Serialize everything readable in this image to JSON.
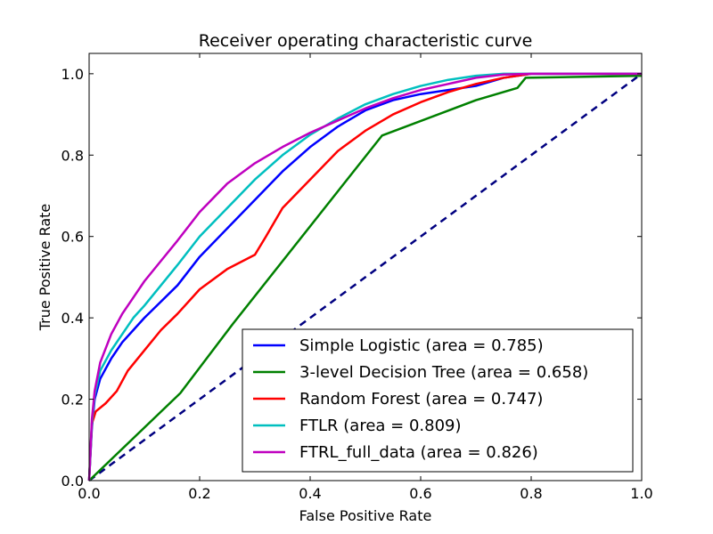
{
  "chart_data": {
    "type": "line",
    "title": "Receiver operating characteristic curve",
    "xlabel": "False Positive Rate",
    "ylabel": "True Positive Rate",
    "xlim": [
      0.0,
      1.0
    ],
    "ylim": [
      0.0,
      1.05
    ],
    "xticks": [
      "0.0",
      "0.2",
      "0.4",
      "0.6",
      "0.8",
      "1.0"
    ],
    "yticks": [
      "0.0",
      "0.2",
      "0.4",
      "0.6",
      "0.8",
      "1.0"
    ],
    "grid": false,
    "legend_position": "lower-right",
    "series": [
      {
        "name": "Simple Logistic (area = 0.785)",
        "color": "#0000ff",
        "x": [
          0.0,
          0.005,
          0.01,
          0.02,
          0.04,
          0.06,
          0.08,
          0.1,
          0.13,
          0.16,
          0.2,
          0.25,
          0.3,
          0.35,
          0.4,
          0.45,
          0.5,
          0.55,
          0.6,
          0.65,
          0.7,
          0.75,
          0.8,
          1.0
        ],
        "y": [
          0.0,
          0.13,
          0.2,
          0.25,
          0.3,
          0.34,
          0.37,
          0.4,
          0.44,
          0.48,
          0.55,
          0.62,
          0.69,
          0.76,
          0.82,
          0.87,
          0.91,
          0.935,
          0.95,
          0.96,
          0.97,
          0.99,
          1.0,
          1.0
        ]
      },
      {
        "name": "3-level Decision Tree (area = 0.658)",
        "color": "#008000",
        "x": [
          0.0,
          0.165,
          0.26,
          0.53,
          0.7,
          0.775,
          0.79,
          1.0
        ],
        "y": [
          0.0,
          0.215,
          0.385,
          0.848,
          0.935,
          0.965,
          0.99,
          0.995
        ]
      },
      {
        "name": "Random Forest (area = 0.747)",
        "color": "#ff0000",
        "x": [
          0.0,
          0.005,
          0.012,
          0.03,
          0.05,
          0.07,
          0.1,
          0.13,
          0.16,
          0.2,
          0.25,
          0.3,
          0.32,
          0.35,
          0.4,
          0.45,
          0.5,
          0.55,
          0.6,
          0.65,
          0.7,
          0.75,
          0.8,
          1.0
        ],
        "y": [
          0.0,
          0.14,
          0.17,
          0.19,
          0.22,
          0.27,
          0.32,
          0.37,
          0.41,
          0.47,
          0.52,
          0.555,
          0.6,
          0.67,
          0.74,
          0.81,
          0.86,
          0.9,
          0.93,
          0.955,
          0.975,
          0.99,
          1.0,
          1.0
        ]
      },
      {
        "name": "FTLR (area = 0.809)",
        "color": "#00bfbf",
        "x": [
          0.0,
          0.005,
          0.01,
          0.02,
          0.04,
          0.06,
          0.08,
          0.1,
          0.13,
          0.16,
          0.2,
          0.25,
          0.3,
          0.35,
          0.4,
          0.45,
          0.5,
          0.55,
          0.6,
          0.65,
          0.7,
          0.75,
          0.8,
          1.0
        ],
        "y": [
          0.0,
          0.14,
          0.21,
          0.27,
          0.32,
          0.36,
          0.4,
          0.43,
          0.48,
          0.53,
          0.6,
          0.67,
          0.74,
          0.8,
          0.85,
          0.89,
          0.925,
          0.95,
          0.97,
          0.985,
          0.995,
          1.0,
          1.0,
          1.0
        ]
      },
      {
        "name": "FTRL_full_data (area = 0.826)",
        "color": "#bf00bf",
        "x": [
          0.0,
          0.005,
          0.01,
          0.02,
          0.04,
          0.06,
          0.08,
          0.1,
          0.13,
          0.16,
          0.2,
          0.25,
          0.3,
          0.35,
          0.4,
          0.45,
          0.5,
          0.55,
          0.6,
          0.65,
          0.7,
          0.75,
          0.8,
          1.0
        ],
        "y": [
          0.0,
          0.15,
          0.22,
          0.29,
          0.36,
          0.41,
          0.45,
          0.49,
          0.54,
          0.59,
          0.66,
          0.73,
          0.78,
          0.82,
          0.855,
          0.885,
          0.915,
          0.94,
          0.96,
          0.975,
          0.99,
          0.998,
          1.0,
          1.0
        ]
      }
    ],
    "reference_line": {
      "color": "#000080",
      "style": "dashed",
      "x": [
        0.0,
        1.0
      ],
      "y": [
        0.0,
        1.0
      ]
    }
  }
}
